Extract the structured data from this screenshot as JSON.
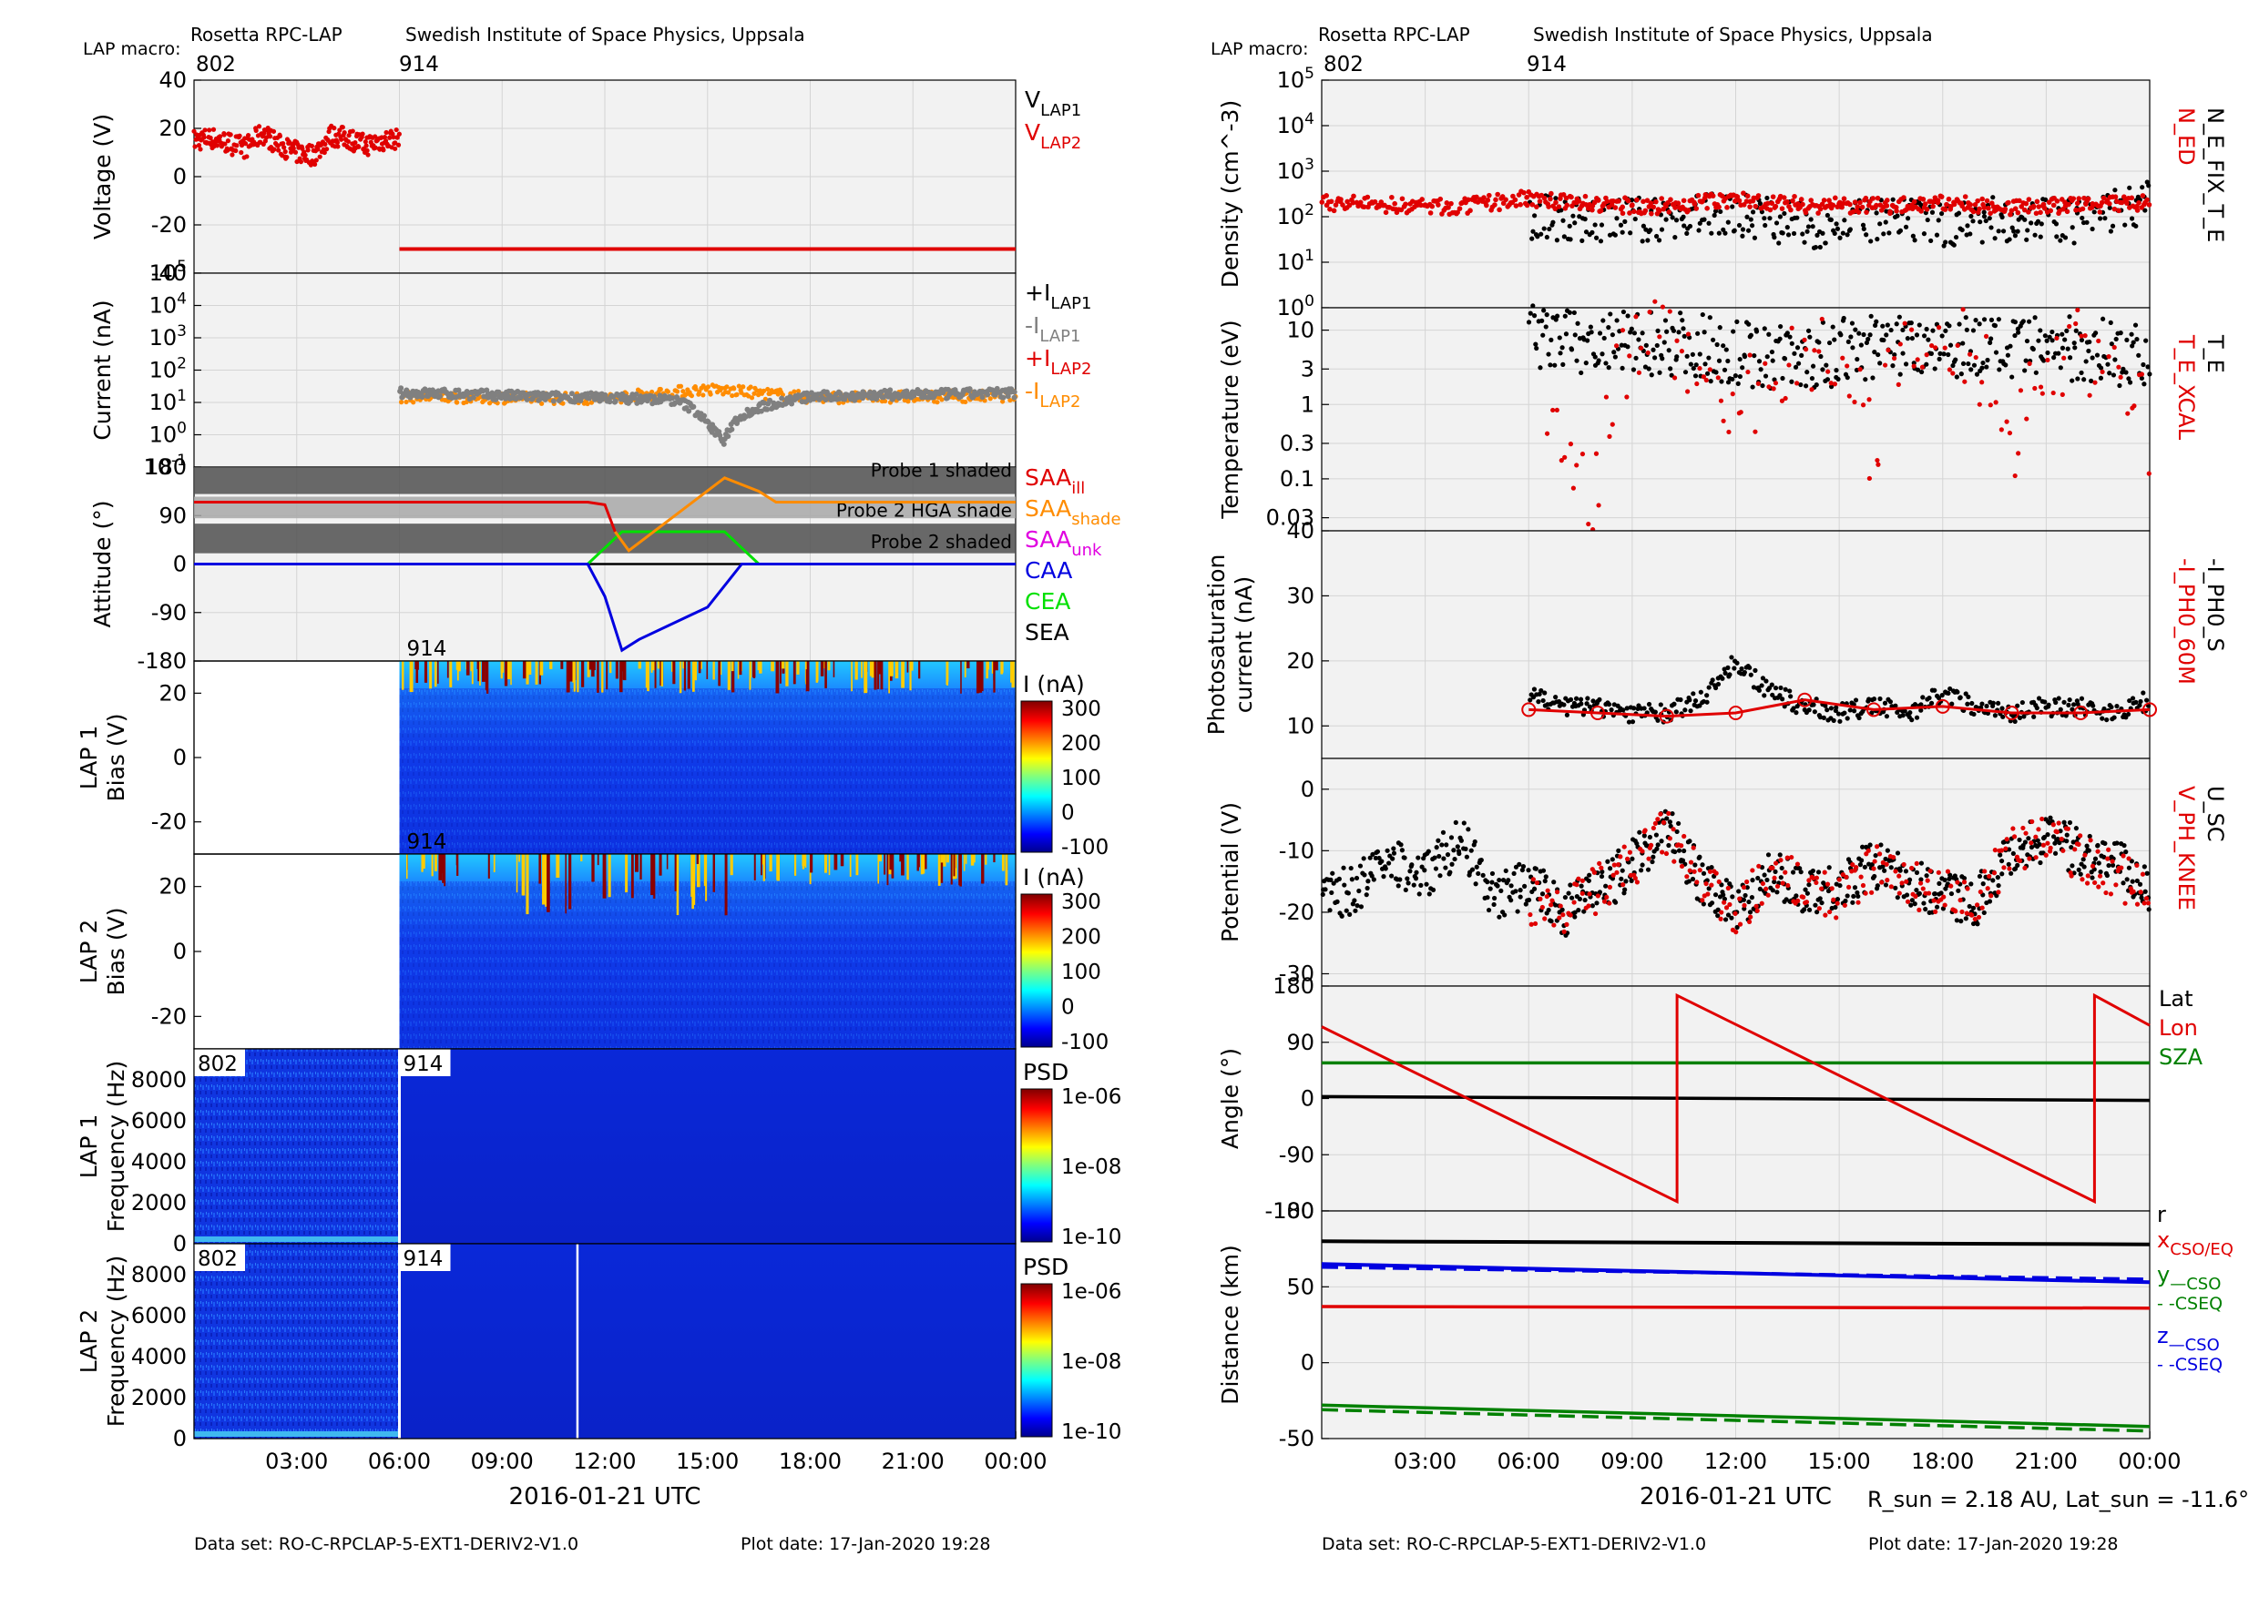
{
  "header": {
    "instrument": "Rosetta RPC-LAP",
    "institute": "Swedish Institute of Space Physics, Uppsala",
    "macro_label": "LAP macro:",
    "macros": [
      "802",
      "914"
    ]
  },
  "footer": {
    "dataset": "Data set: RO-C-RPCLAP-5-EXT1-DERIV2-V1.0",
    "plot_date": "Plot date: 17-Jan-2020 19:28"
  },
  "time_axis": {
    "ticks": [
      "03:00",
      "06:00",
      "09:00",
      "12:00",
      "15:00",
      "18:00",
      "21:00",
      "00:00"
    ],
    "tick_hours": [
      3,
      6,
      9,
      12,
      15,
      18,
      21,
      24
    ],
    "label": "2016-01-21 UTC",
    "range_hours": [
      0,
      24
    ],
    "macro_switch_hour": 6
  },
  "rsun_note": "R_sun = 2.18 AU, Lat_sun = -11.6°",
  "colors": {
    "black": "#000000",
    "red": "#e00000",
    "orange": "#ff8c00",
    "gray": "#808080",
    "green": "#00a000",
    "blue": "#0000e0",
    "lime": "#00e000",
    "magenta": "#e000e0",
    "darkgreen": "#008000"
  },
  "chart_data": [
    {
      "type": "scatter",
      "panel": "voltage",
      "ylabel": "Voltage (V)",
      "yticks": [
        "40",
        "20",
        "0",
        "-20",
        "-40"
      ],
      "ylim": [
        -40,
        40
      ],
      "legend": [
        "V_LAP1",
        "V_LAP2"
      ],
      "series": [
        {
          "name": "V_LAP2",
          "x": [
            0,
            0.5,
            1,
            1.5,
            2,
            2.5,
            3,
            3.5,
            4,
            4.5,
            5,
            5.5,
            6
          ],
          "y": [
            15,
            16,
            14,
            12,
            18,
            13,
            10,
            9,
            17,
            16,
            13,
            15,
            16
          ]
        },
        {
          "name": "V_LAP2",
          "x": [
            6,
            24
          ],
          "y": [
            -30,
            -30
          ]
        }
      ]
    },
    {
      "type": "scatter",
      "panel": "current",
      "ylabel": "Current (nA)",
      "yticks": [
        "10^5",
        "10^4",
        "10^3",
        "10^2",
        "10^1",
        "10^0",
        "10^-1"
      ],
      "ylim": [
        0.1,
        100000
      ],
      "yscale": "log",
      "legend": [
        "+I_LAP1",
        "-I_LAP1",
        "+I_LAP2",
        "-I_LAP2"
      ],
      "series": [
        {
          "name": "-I_LAP1",
          "x": [
            6,
            8,
            10,
            12,
            14,
            15,
            15.5,
            16,
            18,
            20,
            22,
            24
          ],
          "y": [
            20,
            18,
            15,
            14,
            12,
            2,
            0.5,
            4,
            15,
            17,
            18,
            20
          ]
        },
        {
          "name": "-I_LAP2",
          "x": [
            6,
            9,
            12,
            15,
            18,
            21,
            24
          ],
          "y": [
            15,
            14,
            13,
            25,
            14,
            15,
            16
          ]
        }
      ]
    },
    {
      "type": "line",
      "panel": "attitude",
      "ylabel": "Attitude (°)",
      "yticks": [
        "180",
        "90",
        "0",
        "-90",
        "-180"
      ],
      "ylim": [
        -180,
        180
      ],
      "legend": [
        "SAA_ill",
        "SAA_shade",
        "SAA_unk",
        "CAA",
        "CEA",
        "SEA"
      ],
      "annotations": [
        "Probe 1 shaded",
        "Probe 2 HGA shade",
        "Probe 2 shaded"
      ],
      "series": [
        {
          "name": "SAA",
          "x": [
            0,
            11.5,
            12,
            12.3,
            12.7,
            15.5,
            16.5,
            17,
            24
          ],
          "y": [
            115,
            115,
            110,
            60,
            25,
            160,
            135,
            115,
            115
          ]
        },
        {
          "name": "CAA",
          "x": [
            0,
            11.5,
            12,
            12.5,
            13,
            15,
            16,
            16.5,
            24
          ],
          "y": [
            0,
            0,
            -60,
            -160,
            -140,
            -80,
            0,
            0,
            0
          ]
        },
        {
          "name": "CEA",
          "x": [
            0,
            11.5,
            12,
            12.5,
            15.5,
            16,
            16.5,
            24
          ],
          "y": [
            0,
            0,
            30,
            60,
            60,
            30,
            0,
            0
          ]
        },
        {
          "name": "SEA",
          "x": [
            0,
            24
          ],
          "y": [
            0,
            0
          ]
        }
      ]
    },
    {
      "type": "heatmap",
      "panel": "LAP 1 sweep",
      "ylabel": "LAP 1\nBias (V)",
      "yticks": [
        "20",
        "0",
        "-20"
      ],
      "ylim": [
        -30,
        30
      ],
      "colorbar": {
        "label": "I (nA)",
        "ticks": [
          "300",
          "200",
          "100",
          "0",
          "-100"
        ]
      }
    },
    {
      "type": "heatmap",
      "panel": "LAP 2 sweep",
      "ylabel": "LAP 2\nBias (V)",
      "yticks": [
        "20",
        "0",
        "-20"
      ],
      "ylim": [
        -30,
        30
      ],
      "colorbar": {
        "label": "I (nA)",
        "ticks": [
          "300",
          "200",
          "100",
          "0",
          "-100"
        ]
      }
    },
    {
      "type": "heatmap",
      "panel": "LAP 1 PSD",
      "ylabel": "LAP 1\nFrequency (Hz)",
      "yticks": [
        "8000",
        "6000",
        "4000",
        "2000",
        "0"
      ],
      "ylim": [
        0,
        9500
      ],
      "colorbar": {
        "label": "PSD",
        "ticks": [
          "1e-06",
          "1e-08",
          "1e-10"
        ]
      }
    },
    {
      "type": "heatmap",
      "panel": "LAP 2 PSD",
      "ylabel": "LAP 2\nFrequency (Hz)",
      "yticks": [
        "8000",
        "6000",
        "4000",
        "2000",
        "0"
      ],
      "ylim": [
        0,
        9500
      ],
      "colorbar": {
        "label": "PSD",
        "ticks": [
          "1e-06",
          "1e-08",
          "1e-10"
        ]
      }
    },
    {
      "type": "scatter",
      "panel": "density",
      "ylabel": "Density (cm^-3)",
      "yticks": [
        "10^5",
        "10^4",
        "10^3",
        "10^2",
        "10^1",
        "10^0"
      ],
      "ylim": [
        1,
        100000
      ],
      "yscale": "log",
      "legend": [
        "N_ED",
        "N_E_FIX_T_E"
      ],
      "series": [
        {
          "name": "N_ED",
          "x": [
            0,
            2,
            4,
            6,
            8,
            10,
            12,
            14,
            16,
            18,
            20,
            22,
            24
          ],
          "y": [
            200,
            180,
            160,
            250,
            180,
            170,
            240,
            180,
            170,
            200,
            160,
            180,
            200
          ]
        },
        {
          "name": "N_E_FIX_T_E",
          "x": [
            6,
            8,
            10,
            12,
            14,
            16,
            18,
            20,
            22,
            24
          ],
          "y": [
            100,
            80,
            90,
            120,
            60,
            80,
            70,
            90,
            80,
            200
          ]
        }
      ]
    },
    {
      "type": "scatter",
      "panel": "temperature",
      "ylabel": "Temperature (eV)",
      "yticks": [
        "10",
        "3",
        "1",
        "0.3",
        "0.1",
        "0.03"
      ],
      "ylim": [
        0.02,
        20
      ],
      "yscale": "log",
      "legend": [
        "T_E_XCAL",
        "T_E"
      ],
      "series": [
        {
          "name": "T_E",
          "x": [
            6,
            8,
            10,
            12,
            14,
            16,
            18,
            20,
            22,
            24
          ],
          "y": [
            8,
            6,
            7,
            5,
            4,
            6,
            7,
            5,
            6,
            4
          ]
        },
        {
          "name": "T_E_XCAL",
          "x": [
            6.5,
            8,
            10,
            12,
            14,
            16,
            18,
            20,
            22,
            24
          ],
          "y": [
            0.3,
            0.05,
            8,
            0.3,
            5,
            0.1,
            7,
            0.05,
            6,
            0.06
          ]
        }
      ]
    },
    {
      "type": "scatter",
      "panel": "photosaturation",
      "ylabel": "Photosaturation\ncurrent (nA)",
      "yticks": [
        "40",
        "30",
        "20",
        "10"
      ],
      "ylim": [
        5,
        40
      ],
      "legend": [
        "-I_PH0_60M",
        "-I_PH0_S"
      ],
      "series": [
        {
          "name": "-I_PH0_S",
          "x": [
            6,
            7,
            8,
            9,
            10,
            11,
            12,
            13,
            14,
            15,
            16,
            17,
            18,
            19,
            20,
            21,
            22,
            23,
            24
          ],
          "y": [
            15,
            13,
            13,
            12,
            12,
            14,
            20,
            15,
            13,
            12,
            13,
            12,
            15,
            13,
            12,
            13,
            13,
            12,
            14
          ]
        },
        {
          "name": "-I_PH0_60M",
          "x": [
            6,
            8,
            10,
            12,
            14,
            16,
            18,
            20,
            22,
            24
          ],
          "y": [
            12.5,
            12,
            11.5,
            12,
            14,
            12.5,
            13,
            12,
            12,
            12.5
          ]
        }
      ]
    },
    {
      "type": "scatter",
      "panel": "potential",
      "ylabel": "Potential (V)",
      "yticks": [
        "0",
        "-10",
        "-20",
        "-30"
      ],
      "ylim": [
        -32,
        5
      ],
      "legend": [
        "V_PH_KNEE",
        "U_SC"
      ],
      "series": [
        {
          "name": "U_SC",
          "x": [
            0,
            1,
            2,
            3,
            4,
            5,
            6,
            7,
            8,
            9,
            10,
            11,
            12,
            13,
            14,
            15,
            16,
            17,
            18,
            19,
            20,
            21,
            22,
            23,
            24
          ],
          "y": [
            -18,
            -16,
            -12,
            -14,
            -8,
            -18,
            -15,
            -20,
            -17,
            -12,
            -6,
            -15,
            -19,
            -14,
            -16,
            -16,
            -12,
            -15,
            -17,
            -18,
            -10,
            -8,
            -10,
            -12,
            -16
          ]
        },
        {
          "name": "V_PH_KNEE",
          "x": [
            6,
            7,
            8,
            9,
            10,
            11,
            12,
            13,
            14,
            15,
            16,
            17,
            18,
            19,
            20,
            21,
            22,
            23,
            24
          ],
          "y": [
            -18,
            -20,
            -16,
            -12,
            -7,
            -15,
            -21,
            -13,
            -16,
            -18,
            -13,
            -15,
            -17,
            -18,
            -10,
            -8,
            -11,
            -14,
            -17
          ]
        }
      ]
    },
    {
      "type": "line",
      "panel": "angle",
      "ylabel": "Angle (°)",
      "yticks": [
        "180",
        "90",
        "0",
        "-90",
        "-180"
      ],
      "ylim": [
        -180,
        180
      ],
      "legend": [
        "Lat",
        "Lon",
        "SZA"
      ],
      "series": [
        {
          "name": "Lat",
          "x": [
            0,
            24
          ],
          "y": [
            3,
            -3
          ]
        },
        {
          "name": "Lon",
          "x": [
            0,
            10.3,
            10.3,
            22.4,
            22.4,
            24
          ],
          "y": [
            115,
            -165,
            165,
            -165,
            165,
            117
          ]
        },
        {
          "name": "SZA",
          "x": [
            0,
            24
          ],
          "y": [
            57,
            57
          ]
        }
      ]
    },
    {
      "type": "line",
      "panel": "distance",
      "ylabel": "Distance (km)",
      "yticks": [
        "100",
        "50",
        "0",
        "-50"
      ],
      "ylim": [
        -50,
        100
      ],
      "legend": [
        "r",
        "x_CSO/EQ",
        "y_—CSO",
        "- -CSEQ",
        "z_—CSO",
        "- -CSEQ"
      ],
      "series": [
        {
          "name": "r",
          "x": [
            0,
            24
          ],
          "y": [
            80,
            78
          ]
        },
        {
          "name": "x_CSO/EQ",
          "x": [
            0,
            24
          ],
          "y": [
            37,
            36
          ]
        },
        {
          "name": "y_CSO",
          "x": [
            0,
            24
          ],
          "y": [
            -28,
            -42
          ]
        },
        {
          "name": "y_CSEQ",
          "x": [
            0,
            24
          ],
          "y": [
            -31,
            -45
          ]
        },
        {
          "name": "z_CSO",
          "x": [
            0,
            24
          ],
          "y": [
            65,
            53
          ]
        },
        {
          "name": "z_CSEQ",
          "x": [
            0,
            24
          ],
          "y": [
            63,
            55
          ]
        }
      ]
    }
  ]
}
